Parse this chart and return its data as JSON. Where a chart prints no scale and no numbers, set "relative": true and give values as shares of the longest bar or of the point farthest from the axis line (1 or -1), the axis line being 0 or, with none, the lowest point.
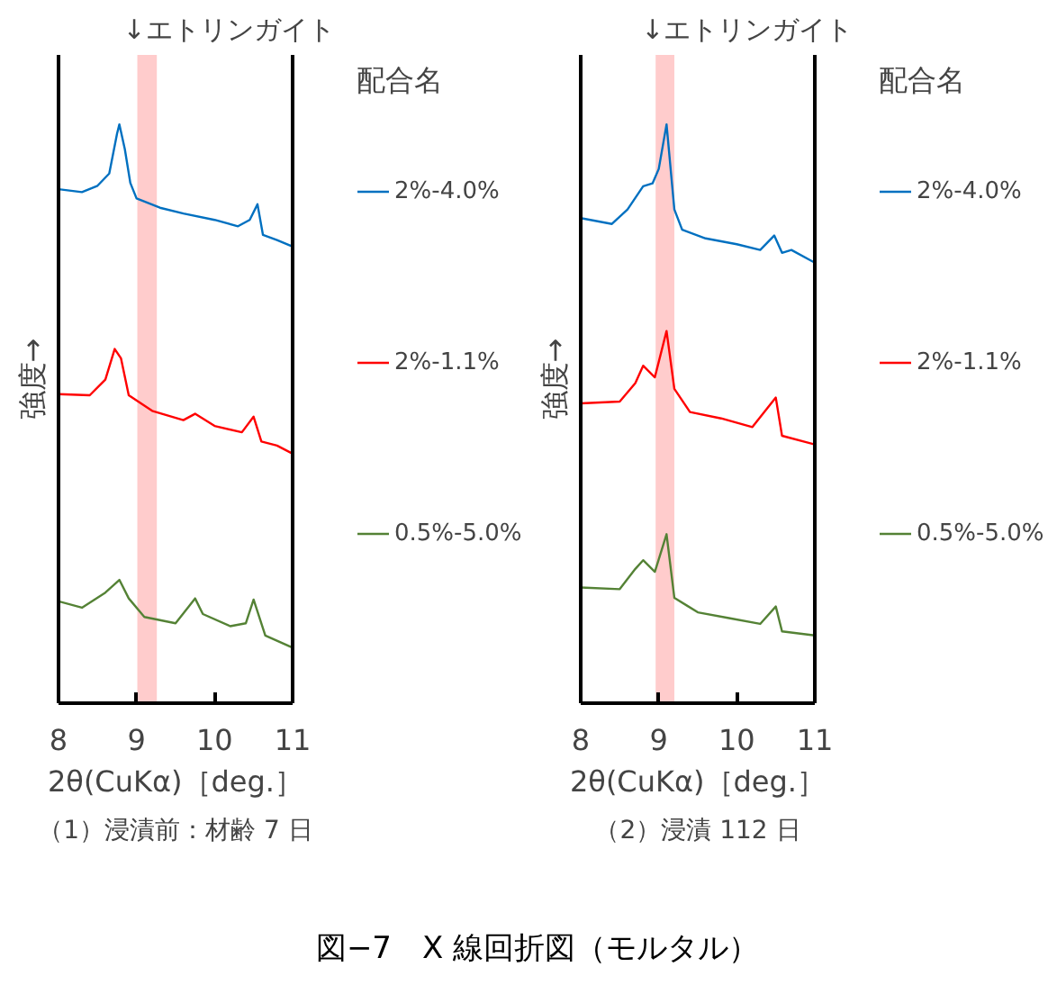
{
  "chart_data": [
    {
      "type": "line",
      "relative": true,
      "title": "（1）浸漬前：材齢 7 日",
      "xlabel": "2θ(CuKα)［deg.］",
      "ylabel": "強度→",
      "legend_title": "配合名",
      "legend": "right",
      "grid": false,
      "xlim": [
        8,
        11
      ],
      "xticks": [
        8,
        9,
        10,
        11
      ],
      "bands": [
        {
          "axis": "x",
          "from": 9.01,
          "to": 9.26,
          "label": "↓エトリンガイト",
          "color": "#ffcccc"
        }
      ],
      "annotations": [
        "図−7　X 線回折図（モルタル）"
      ],
      "series": [
        {
          "name": "2%-4.0%",
          "color": "#0070c0",
          "x": [
            8.0,
            8.3,
            8.5,
            8.65,
            8.75,
            8.78,
            8.85,
            8.92,
            9.0,
            9.3,
            9.6,
            10.0,
            10.3,
            10.45,
            10.55,
            10.62,
            10.8,
            11.0
          ],
          "values": [
            0.888,
            0.883,
            0.894,
            0.915,
            0.984,
            1.0,
            0.957,
            0.899,
            0.872,
            0.856,
            0.846,
            0.835,
            0.824,
            0.835,
            0.862,
            0.809,
            0.8,
            0.789
          ]
        },
        {
          "name": "2%-1.1%",
          "color": "#ff0000",
          "x": [
            8.0,
            8.4,
            8.6,
            8.72,
            8.8,
            8.9,
            9.2,
            9.6,
            9.75,
            10.0,
            10.35,
            10.5,
            10.6,
            10.8,
            11.0
          ],
          "values": [
            0.534,
            0.532,
            0.559,
            0.612,
            0.596,
            0.532,
            0.505,
            0.489,
            0.5,
            0.479,
            0.468,
            0.495,
            0.452,
            0.445,
            0.431
          ]
        },
        {
          "name": "0.5%-5.0%",
          "color": "#548235",
          "x": [
            8.0,
            8.3,
            8.6,
            8.78,
            8.9,
            9.1,
            9.5,
            9.75,
            9.85,
            10.2,
            10.4,
            10.5,
            10.65,
            11.0
          ],
          "values": [
            0.176,
            0.165,
            0.191,
            0.213,
            0.181,
            0.149,
            0.138,
            0.181,
            0.154,
            0.133,
            0.138,
            0.179,
            0.117,
            0.096
          ]
        }
      ]
    },
    {
      "type": "line",
      "relative": true,
      "title": "（2）浸漬 112 日",
      "xlabel": "2θ(CuKα)［deg.］",
      "ylabel": "強度→",
      "legend_title": "配合名",
      "legend": "right",
      "grid": false,
      "xlim": [
        8,
        11
      ],
      "xticks": [
        8,
        9,
        10,
        11
      ],
      "bands": [
        {
          "axis": "x",
          "from": 8.96,
          "to": 9.2,
          "label": "↓エトリンガイト",
          "color": "#ffcccc"
        }
      ],
      "series": [
        {
          "name": "2%-4.0%",
          "color": "#0070c0",
          "x": [
            8.0,
            8.4,
            8.6,
            8.8,
            8.92,
            9.0,
            9.1,
            9.2,
            9.3,
            9.6,
            10.0,
            10.3,
            10.48,
            10.58,
            10.7,
            11.0
          ],
          "values": [
            0.838,
            0.828,
            0.853,
            0.893,
            0.898,
            0.923,
            1.0,
            0.853,
            0.818,
            0.803,
            0.793,
            0.783,
            0.808,
            0.778,
            0.783,
            0.761
          ]
        },
        {
          "name": "2%-1.1%",
          "color": "#ff0000",
          "x": [
            8.0,
            8.5,
            8.7,
            8.8,
            8.95,
            9.1,
            9.2,
            9.4,
            9.8,
            10.2,
            10.5,
            10.58,
            11.0
          ],
          "values": [
            0.518,
            0.521,
            0.553,
            0.583,
            0.563,
            0.643,
            0.543,
            0.503,
            0.492,
            0.477,
            0.528,
            0.462,
            0.447
          ]
        },
        {
          "name": "0.5%-5.0%",
          "color": "#548235",
          "x": [
            8.0,
            8.5,
            8.7,
            8.8,
            8.95,
            9.1,
            9.2,
            9.5,
            9.9,
            10.3,
            10.5,
            10.58,
            11.0
          ],
          "values": [
            0.2,
            0.197,
            0.232,
            0.247,
            0.227,
            0.292,
            0.182,
            0.157,
            0.147,
            0.137,
            0.167,
            0.124,
            0.117
          ]
        }
      ]
    }
  ]
}
